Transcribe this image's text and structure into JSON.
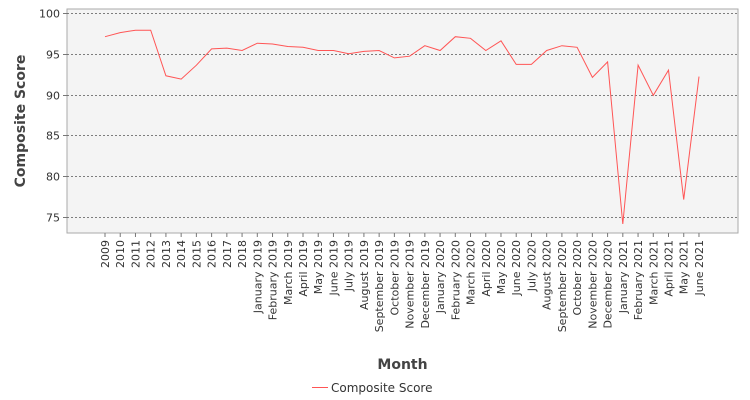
{
  "chart_data": {
    "type": "line",
    "xlabel": "Month",
    "ylabel": "Composite Score",
    "ylim": [
      73,
      100.5
    ],
    "yticks": [
      75,
      80,
      85,
      90,
      95,
      100
    ],
    "grid": true,
    "legend_position": "bottom-center",
    "categories": [
      "2009",
      "2010",
      "2011",
      "2012",
      "2013",
      "2014",
      "2015",
      "2016",
      "2017",
      "2018",
      "January 2019",
      "February 2019",
      "March 2019",
      "April 2019",
      "May 2019",
      "June 2019",
      "July 2019",
      "August 2019",
      "September 2019",
      "October 2019",
      "November 2019",
      "December 2019",
      "January 2020",
      "February 2020",
      "March 2020",
      "April 2020",
      "May 2020",
      "June 2020",
      "July 2020",
      "August 2020",
      "September 2020",
      "October 2020",
      "November 2020",
      "December 2020",
      "January 2021",
      "February 2021",
      "March 2021",
      "April 2021",
      "May 2021",
      "June 2021"
    ],
    "series": [
      {
        "name": "Composite Score",
        "color": "#ff5555",
        "values": [
          97.1,
          97.6,
          97.9,
          97.9,
          92.3,
          91.9,
          93.6,
          95.6,
          95.7,
          95.4,
          96.3,
          96.2,
          95.9,
          95.8,
          95.4,
          95.4,
          95.0,
          95.3,
          95.4,
          94.5,
          94.7,
          96.0,
          95.4,
          97.1,
          96.9,
          95.4,
          96.6,
          93.7,
          93.7,
          95.4,
          96.0,
          95.8,
          92.1,
          94.0,
          74.1,
          93.6,
          89.9,
          93.0,
          77.1,
          92.2
        ]
      }
    ]
  }
}
